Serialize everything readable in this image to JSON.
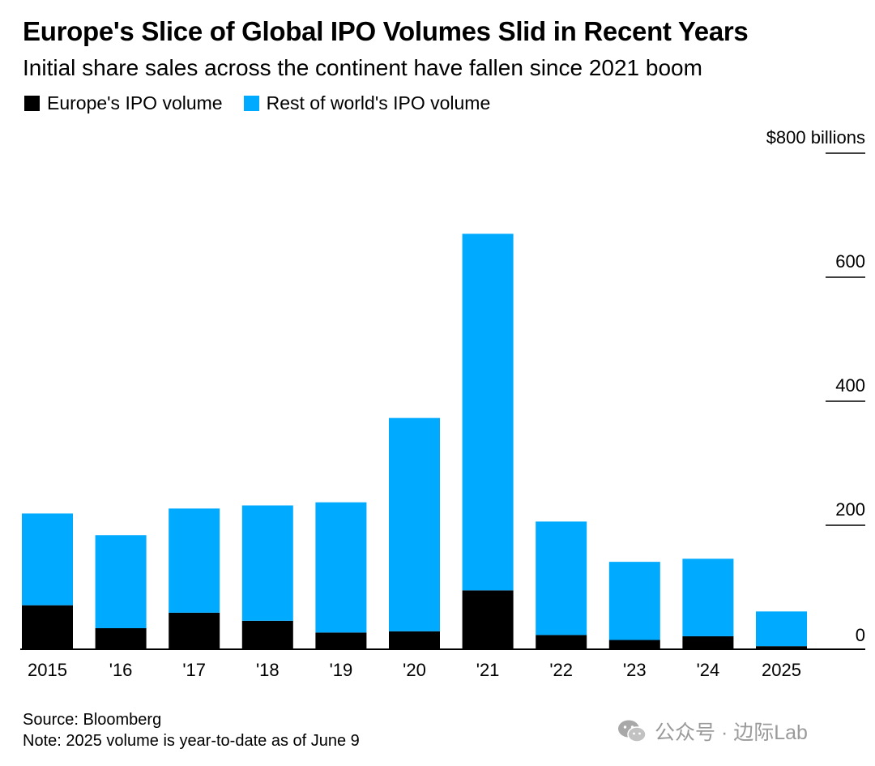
{
  "title": "Europe's Slice of Global IPO Volumes Slid in Recent Years",
  "subtitle": "Initial share sales across the continent have fallen since 2021 boom",
  "footer": {
    "source": "Source: Bloomberg",
    "note": "Note: 2025 volume is year-to-date as of June 9"
  },
  "watermark": {
    "text": "公众号 · 边际Lab",
    "icon": "wechat-icon"
  },
  "colors": {
    "europe": "#000000",
    "rest": "#00aaff"
  },
  "chart_data": {
    "type": "bar",
    "stacked": true,
    "categories": [
      "2015",
      "'16",
      "'17",
      "'18",
      "'19",
      "'20",
      "'21",
      "'22",
      "'23",
      "'24",
      "2025"
    ],
    "series": [
      {
        "name": "Europe's IPO volume",
        "color": "#000000",
        "values": [
          71,
          34,
          59,
          46,
          27,
          29,
          95,
          23,
          15,
          21,
          5
        ]
      },
      {
        "name": "Rest of world's IPO volume",
        "color": "#00aaff",
        "values": [
          148,
          150,
          168,
          186,
          210,
          344,
          575,
          183,
          126,
          125,
          56
        ]
      }
    ],
    "ylim": [
      0,
      800
    ],
    "yticks": [
      0,
      200,
      400,
      600,
      800
    ],
    "ytick_labels": [
      "0",
      "200",
      "400",
      "600",
      "$800 billions"
    ],
    "y_axis_position": "right",
    "grid": false,
    "legend_position": "top-left"
  }
}
